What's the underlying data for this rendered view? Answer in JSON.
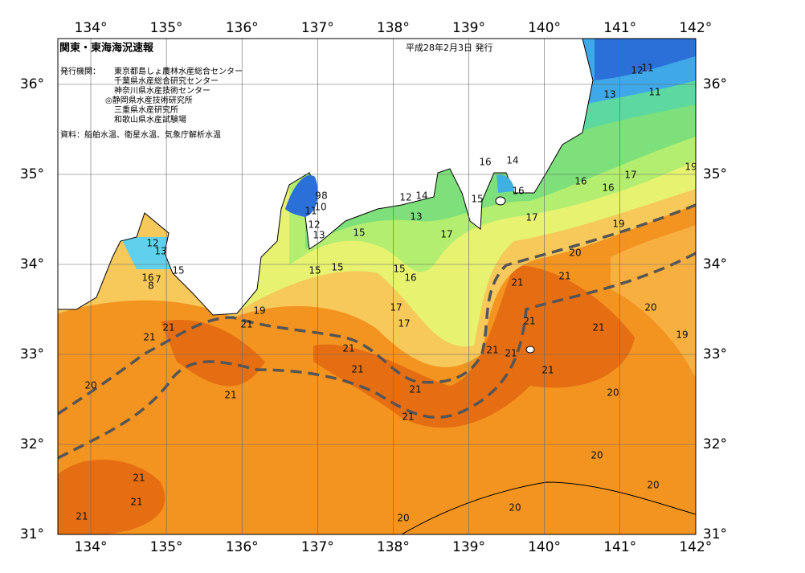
{
  "header": {
    "title": "関東・東海海況速報",
    "date": "平成28年2月3日 発行",
    "issuer_label": "発行機関：",
    "issuers": [
      "東京都島しょ農林水産総合センター",
      "千葉県水産総合研究センター",
      "神奈川県水産技術センター",
      "◎静岡県水産技術研究所",
      "三重県水産研究所",
      "和歌山県水産試験場"
    ],
    "source": "資料：船舶水温、衛星水温、気象庁解析水温"
  },
  "axes": {
    "lon_ticks_top": [
      "134°",
      "135°",
      "136°",
      "137°",
      "138°",
      "139°",
      "140°",
      "141°",
      "142°"
    ],
    "lon_ticks_bottom": [
      "134°",
      "135°",
      "136°",
      "137°",
      "138°",
      "139°",
      "140°",
      "141°",
      "142°"
    ],
    "lat_ticks_left": [
      "36°",
      "35°",
      "34°",
      "33°",
      "32°",
      "31°"
    ],
    "lat_ticks_right": [
      "36°",
      "35°",
      "34°",
      "33°",
      "32°",
      "31°"
    ]
  },
  "contour_labels": [
    "12",
    "11",
    "13",
    "11",
    "16",
    "14",
    "17",
    "19",
    "16",
    "16",
    "16",
    "15",
    "12",
    "14",
    "13",
    "9",
    "8",
    "10",
    "11",
    "12",
    "13",
    "17",
    "19",
    "15",
    "17",
    "12",
    "13",
    "15",
    "16",
    "7",
    "8",
    "15",
    "15",
    "15",
    "16",
    "20",
    "21",
    "21",
    "19",
    "21",
    "17",
    "17",
    "21",
    "20",
    "21",
    "19",
    "21",
    "21",
    "21",
    "21",
    "21",
    "21",
    "21",
    "20",
    "21",
    "21",
    "20",
    "21",
    "20",
    "21",
    "20",
    "21",
    "20",
    "20",
    "21"
  ]
}
